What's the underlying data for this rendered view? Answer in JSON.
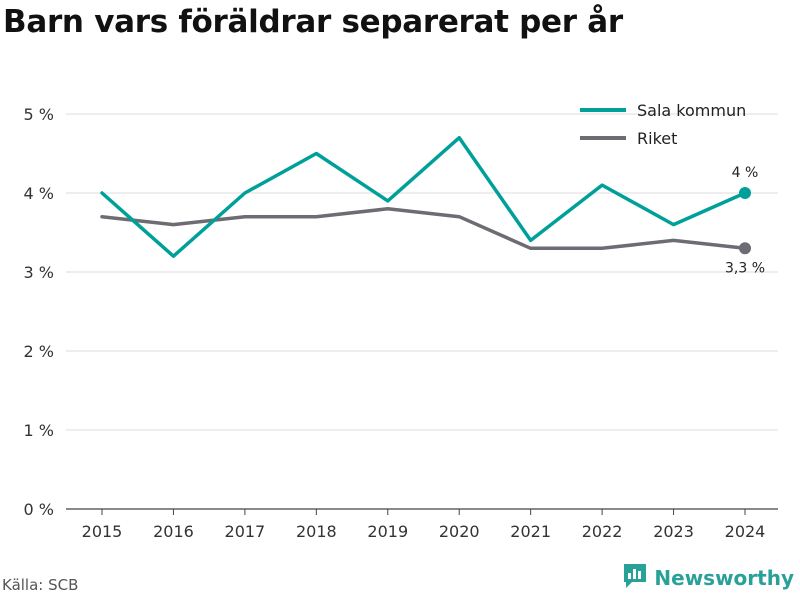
{
  "header": {
    "title": "Barn vars föräldrar separerat per år"
  },
  "footer": {
    "source": "Källa: SCB",
    "brand": "Newsworthy"
  },
  "brand_icon": "newsworthy-logo-icon",
  "colors": {
    "sala": "#00a09a",
    "riket": "#6d6c72",
    "grid": "#dddddd",
    "brand": "#2aa198"
  },
  "chart_data": {
    "type": "line",
    "title": "Barn vars föräldrar separerat per år",
    "xlabel": "",
    "ylabel": "",
    "x": [
      "2015",
      "2016",
      "2017",
      "2018",
      "2019",
      "2020",
      "2021",
      "2022",
      "2023",
      "2024"
    ],
    "ylim": [
      0,
      5
    ],
    "yticks": [
      0,
      1,
      2,
      3,
      4,
      5
    ],
    "ytick_labels": [
      "0 %",
      "1 %",
      "2 %",
      "3 %",
      "4 %",
      "5 %"
    ],
    "grid": true,
    "legend_position": "top-right",
    "series": [
      {
        "name": "Sala kommun",
        "values": [
          4.0,
          3.2,
          4.0,
          4.5,
          3.9,
          4.7,
          3.4,
          4.1,
          3.6,
          4.0
        ],
        "end_label": "4 %"
      },
      {
        "name": "Riket",
        "values": [
          3.7,
          3.6,
          3.7,
          3.7,
          3.8,
          3.7,
          3.3,
          3.3,
          3.4,
          3.3
        ],
        "end_label": "3,3 %"
      }
    ]
  }
}
